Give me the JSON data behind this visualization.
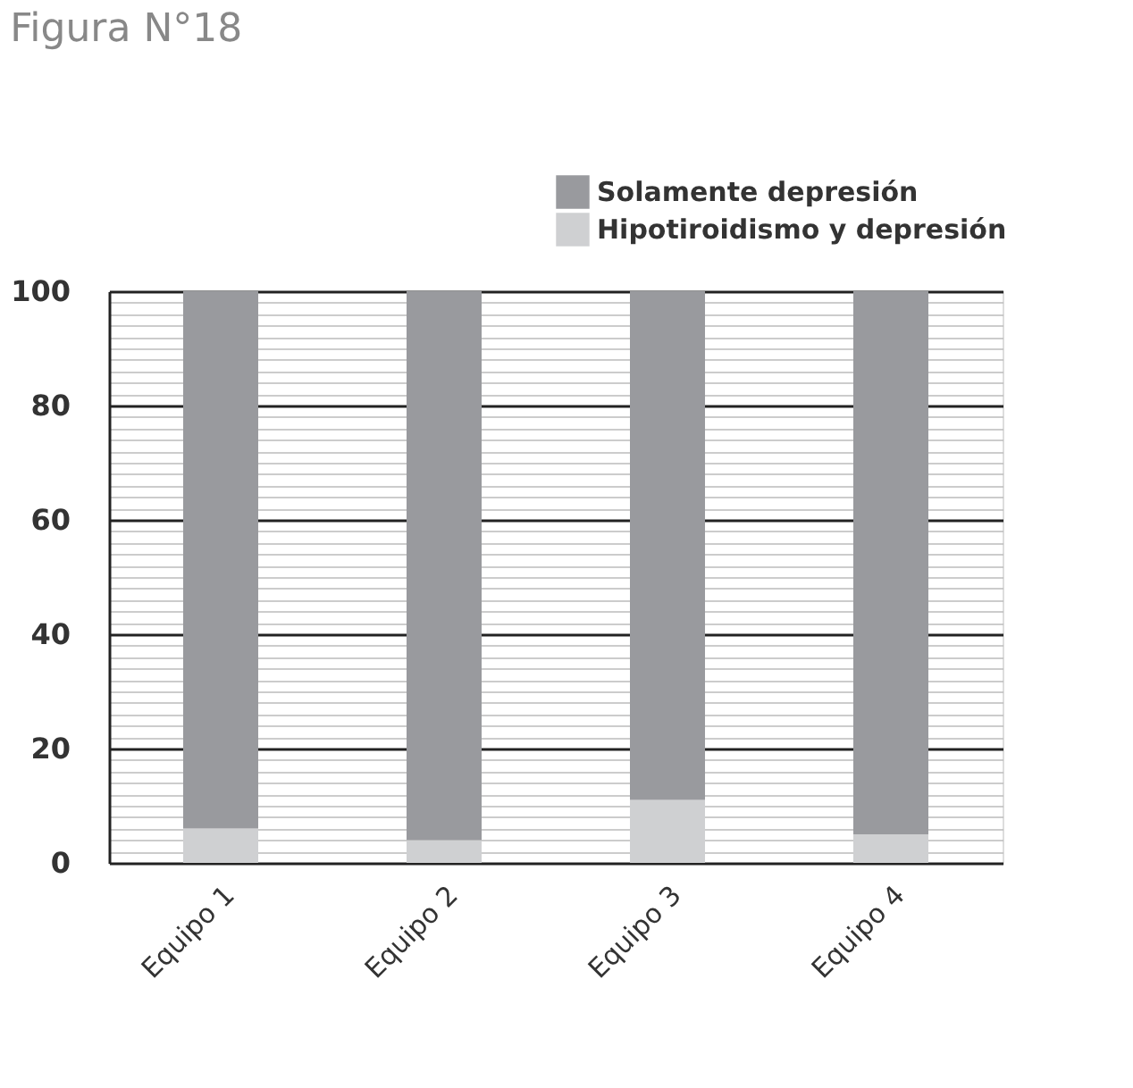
{
  "chart_data": {
    "type": "bar",
    "title": "Figura N°18",
    "stacked": true,
    "categories": [
      "Equipo 1",
      "Equipo 2",
      "Equipo 3",
      "Equipo 4"
    ],
    "series": [
      {
        "name": "Hipotiroidismo y depresión",
        "color": "#cfd0d2",
        "values": [
          6,
          4,
          11,
          5
        ]
      },
      {
        "name": "Solamente depresión",
        "color": "#999a9e",
        "values": [
          94,
          96,
          89,
          95
        ]
      }
    ],
    "ylim": [
      0,
      100
    ],
    "yticks": [
      0,
      20,
      40,
      60,
      80,
      100
    ],
    "grid": "y",
    "legend": "top right"
  }
}
